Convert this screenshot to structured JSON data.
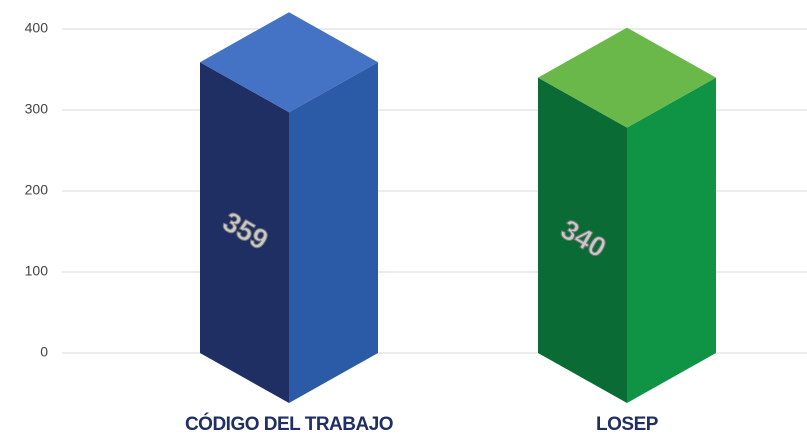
{
  "chart_data": {
    "type": "bar3d",
    "categories": [
      "CÓDIGO DEL TRABAJO",
      "LOSEP"
    ],
    "values": [
      359,
      340
    ],
    "colors": [
      {
        "front": "#1f2f63",
        "side": "#2b5aa7",
        "top": "#4472c4"
      },
      {
        "front": "#0a6b35",
        "side": "#0f9446",
        "top": "#6bb84a"
      }
    ],
    "ylim": [
      0,
      400
    ],
    "yticks": [
      0,
      100,
      200,
      300,
      400
    ],
    "grid": true
  }
}
